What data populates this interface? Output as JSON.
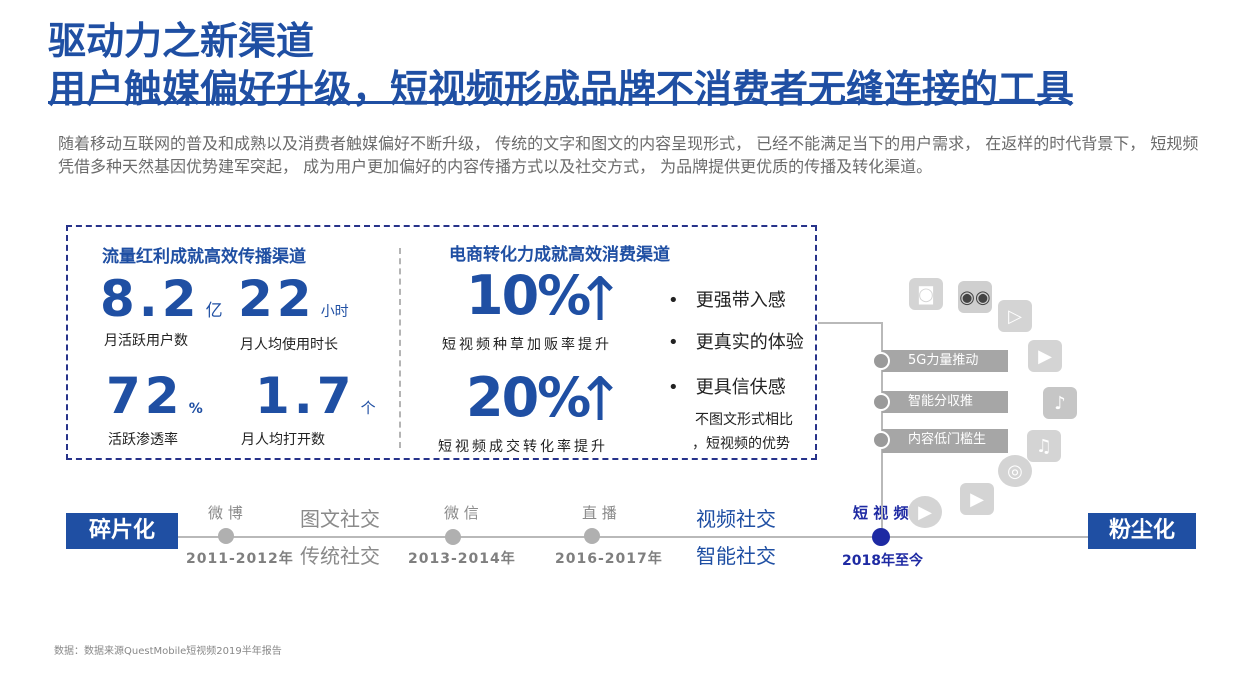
{
  "header": {
    "title_line1": "驱动力之新渠道",
    "title_line2": "用户触媒偏好升级，短视频形成品牌不消费者无缝连接的工具"
  },
  "intro": "随着移动互联网的普及和成熟以及消费者触媒偏好不断升级， 传统的文字和图文的内容呈现形式， 已经不能满足当下的用户需求， 在返样的时代背景下， 短规频凭借多种天然基因优势建军突起， 成为用户更加偏好的内容传播方式以及社交方式， 为品牌提供更优质的传播及转化渠道。",
  "left_section": {
    "heading": "流量红利成就高效传播渠道",
    "stats": [
      {
        "value": "8.2",
        "unit": "亿",
        "label": "月活跃用户数"
      },
      {
        "value": "22",
        "unit": "小时",
        "label": "月人均使用时长"
      },
      {
        "value": "72",
        "unit": "%",
        "label": "活跃渗透率"
      },
      {
        "value": "1.7",
        "unit": "个",
        "label": "月人均打开数"
      }
    ]
  },
  "right_section": {
    "heading": "电商转化力成就高效消费渠道",
    "stats": [
      {
        "value": "10%",
        "label": "短视频种草加贩率提升"
      },
      {
        "value": "20%",
        "label": "短视频成交转化率提升"
      }
    ],
    "bullets": [
      "更强带入感",
      "更真实的体验",
      "更具信伕感"
    ],
    "note_line1": "不图文形式相比",
    "note_line2": "，短视频的优势"
  },
  "timeline": {
    "start_label": "碎片化",
    "end_label": "粉尘化",
    "stages": [
      {
        "name": "微 博",
        "year": "2011-2012年"
      },
      {
        "name": "微 信",
        "year": "2013-2014年"
      },
      {
        "name": "直 播",
        "year": "2016-2017年"
      },
      {
        "name": "短 视 频",
        "year": "2018年至今"
      }
    ],
    "phases_gray": [
      "图文社交",
      "传统社交"
    ],
    "phases_blue": [
      "视频社交",
      "智能社交"
    ]
  },
  "features": [
    "5G力量推动",
    "智能分収推",
    "内容低门槛生"
  ],
  "icons": [
    "camera-icon",
    "owl-icon",
    "play-icon",
    "play-circle-icon",
    "tiktok-icon",
    "music-icon",
    "disc-icon",
    "play-circle-icon",
    "video-icon"
  ],
  "source": "数据：数据来源QuestMobile短视频2019半年报告",
  "colors": {
    "brand": "#1f4fa3",
    "highlight_dot": "#1e2aa3",
    "gray": "#a6a6a6"
  }
}
